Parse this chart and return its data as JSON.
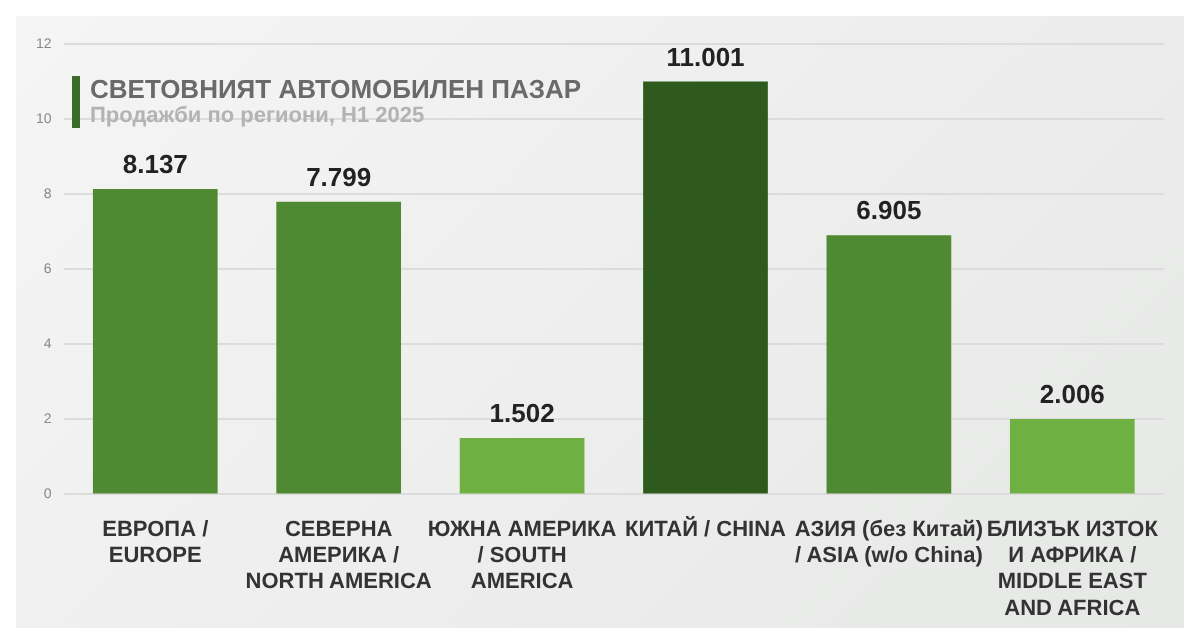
{
  "chart_data": {
    "type": "bar",
    "title": "СВЕТОВНИЯТ АВТОМОБИЛЕН ПАЗАР",
    "subtitle": "Продажби по региони, H1 2025",
    "categories": [
      "ЕВРОПА / EUROPE",
      "СЕВЕРНА АМЕРИКА / NORTH AMERICA",
      "ЮЖНА АМЕРИКА / SOUTH AMERICA",
      "КИТАЙ / CHINA",
      "АЗИЯ (без Китай) / ASIA  (w/o China)",
      "БЛИЗЪК ИЗТОК И АФРИКА / MIDDLE EAST AND AFRICA"
    ],
    "values": [
      8.137,
      7.799,
      1.502,
      11.001,
      6.905,
      2.006
    ],
    "colors": [
      "#4f8a33",
      "#4f8a33",
      "#6fb043",
      "#2e5a1e",
      "#4f8a33",
      "#6fb043"
    ],
    "value_labels": [
      "8.137",
      "7.799",
      "1.502",
      "11.001",
      "6.905",
      "2.006"
    ],
    "ylim": [
      0,
      12
    ],
    "yticks": [
      0,
      2,
      4,
      6,
      8,
      10,
      12
    ],
    "grid": "y",
    "legend": false
  }
}
